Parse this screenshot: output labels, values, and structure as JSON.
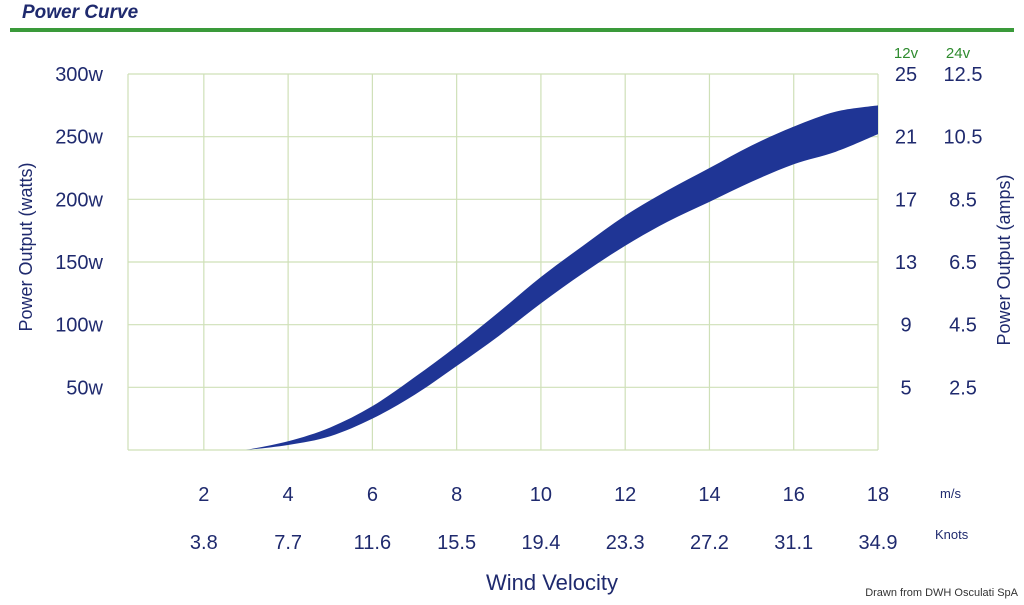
{
  "header": {
    "title": "Power Curve"
  },
  "footer": {
    "credit": "Drawn from DWH Osculati SpA"
  },
  "colors": {
    "rule": "#3a9a3a",
    "band": "#1f3595",
    "grid": "#cfe0b8",
    "text": "#1f2a6e",
    "header_green": "#2e8b2e"
  },
  "chart_data": {
    "type": "area",
    "title": "Power Curve",
    "xlabel": "Wind Velocity",
    "ylabel": "Power Output (watts)",
    "y2label": "Power Output (amps)",
    "x_unit_ms": "m/s",
    "x_unit_knots": "Knots",
    "x_ticks_ms": [
      "2",
      "4",
      "6",
      "8",
      "10",
      "12",
      "14",
      "16",
      "18"
    ],
    "x_ticks_knots": [
      "3.8",
      "7.7",
      "11.6",
      "15.5",
      "19.4",
      "23.3",
      "27.2",
      "31.1",
      "34.9"
    ],
    "y_ticks": [
      "300w",
      "250w",
      "200w",
      "150w",
      "100w",
      "50w"
    ],
    "y_tick_values": [
      300,
      250,
      200,
      150,
      100,
      50
    ],
    "y2_headers": [
      "12v",
      "24v"
    ],
    "y2_ticks_12v": [
      "25",
      "21",
      "17",
      "13",
      "9",
      "5"
    ],
    "y2_ticks_24v": [
      "12.5",
      "10.5",
      "8.5",
      "6.5",
      "4.5",
      "2.5"
    ],
    "xlim": [
      0.2,
      18
    ],
    "ylim": [
      0,
      300
    ],
    "grid": true,
    "series": [
      {
        "x": [
          3,
          4,
          5,
          6,
          7,
          8,
          9,
          10,
          11,
          12,
          13,
          14,
          15,
          16,
          17,
          18
        ],
        "upper": [
          0,
          7,
          18,
          35,
          58,
          83,
          110,
          138,
          163,
          187,
          207,
          225,
          243,
          258,
          270,
          275
        ],
        "lower": [
          0,
          4,
          11,
          25,
          44,
          67,
          91,
          117,
          141,
          163,
          182,
          198,
          214,
          228,
          238,
          252
        ]
      }
    ]
  }
}
